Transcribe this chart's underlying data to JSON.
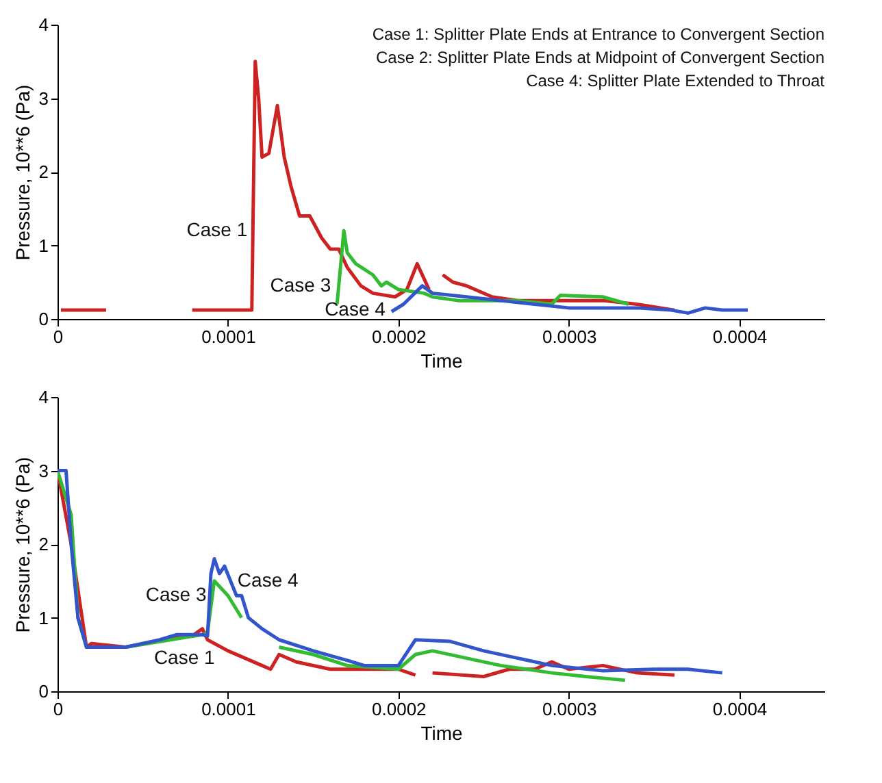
{
  "chart_data": [
    {
      "type": "line",
      "xlabel": "Time",
      "ylabel": "Pressure, 10**6 (Pa)",
      "xlim": [
        0,
        0.00045
      ],
      "ylim": [
        0,
        4
      ],
      "xticks": [
        0,
        0.0001,
        0.0002,
        0.0003,
        0.0004
      ],
      "yticks": [
        0,
        1,
        2,
        3,
        4
      ],
      "grid": false,
      "annotations": [
        "Case 1: Splitter Plate Ends at Entrance to Convergent Section",
        "Case 2: Splitter Plate Ends at Midpoint of Convergent Section",
        "Case 4: Splitter Plate Extended to Throat"
      ],
      "series": [
        {
          "name": "Case 1",
          "color": "#cc2222",
          "x": [
            2e-06,
            2.85e-05,
            5e-05,
            7.9e-05,
            0.000114,
            0.000116,
            0.000118,
            0.00012,
            0.000124,
            0.000129,
            0.000133,
            0.000137,
            0.000142,
            0.000148,
            0.000155,
            0.00016,
            0.000165,
            0.00017,
            0.000178,
            0.000185,
            0.000198,
            0.000205,
            0.000211,
            0.000215,
            0.000218,
            0.000222,
            0.000226,
            0.000232,
            0.00024,
            0.000245,
            0.000255,
            0.00027,
            0.0003,
            0.00032,
            0.00034,
            0.000362
          ],
          "values": [
            0.12,
            0.12,
            null,
            0.12,
            0.12,
            3.5,
            3.0,
            2.2,
            2.25,
            2.9,
            2.2,
            1.8,
            1.4,
            1.4,
            1.1,
            0.95,
            0.95,
            0.7,
            0.45,
            0.35,
            0.3,
            0.4,
            0.75,
            0.55,
            0.4,
            null,
            0.6,
            0.5,
            0.45,
            0.4,
            0.3,
            0.25,
            0.25,
            0.25,
            0.2,
            0.12
          ]
        },
        {
          "name": "Case 3",
          "color": "#33bb33",
          "x": [
            0.000164,
            0.000168,
            0.00017,
            0.000175,
            0.000185,
            0.00019,
            0.000193,
            0.0002,
            0.000215,
            0.00022,
            0.000235,
            0.00027,
            0.00029,
            0.000295,
            0.00032,
            0.000335
          ],
          "values": [
            0.2,
            1.2,
            0.9,
            0.75,
            0.6,
            0.45,
            0.5,
            0.4,
            0.35,
            0.3,
            0.25,
            0.25,
            0.2,
            0.32,
            0.3,
            0.2
          ]
        },
        {
          "name": "Case 4",
          "color": "#3355cc",
          "x": [
            0.000196,
            0.000203,
            0.000214,
            0.00022,
            0.00024,
            0.00026,
            0.00028,
            0.0003,
            0.00034,
            0.00036,
            0.00037,
            0.00038,
            0.00039,
            0.000405
          ],
          "values": [
            0.1,
            0.2,
            0.45,
            0.35,
            0.3,
            0.25,
            0.2,
            0.15,
            0.15,
            0.12,
            0.08,
            0.15,
            0.12,
            0.12
          ]
        }
      ]
    },
    {
      "type": "line",
      "xlabel": "Time",
      "ylabel": "Pressure, 10**6 (Pa)",
      "xlim": [
        0,
        0.00045
      ],
      "ylim": [
        0,
        4
      ],
      "xticks": [
        0,
        0.0001,
        0.0002,
        0.0003,
        0.0004
      ],
      "yticks": [
        0,
        1,
        2,
        3,
        4
      ],
      "grid": false,
      "series": [
        {
          "name": "Case 1",
          "color": "#cc2222",
          "x": [
            0,
            8e-06,
            1.7e-05,
            2e-05,
            4e-05,
            8e-05,
            8.5e-05,
            8.8e-05,
            0.0001,
            0.00012,
            0.000125,
            0.00013,
            0.00014,
            0.00016,
            0.0002,
            0.00021,
            0.000215,
            0.00022,
            0.00025,
            0.000265,
            0.00028,
            0.00029,
            0.0003,
            0.00032,
            0.00034,
            0.000362
          ],
          "values": [
            3.0,
            2.0,
            0.6,
            0.65,
            0.6,
            0.77,
            0.85,
            0.7,
            0.55,
            0.35,
            0.3,
            0.5,
            0.4,
            0.3,
            0.3,
            0.22,
            null,
            0.25,
            0.2,
            0.3,
            0.3,
            0.4,
            0.3,
            0.35,
            0.25,
            0.22
          ]
        },
        {
          "name": "Case 3",
          "color": "#33bb33",
          "x": [
            0,
            8e-06,
            1.2e-05,
            1.7e-05,
            4e-05,
            8.5e-05,
            8.8e-05,
            9.2e-05,
            0.0001,
            0.000108,
            0.00012,
            0.00013,
            0.00015,
            0.00017,
            0.0002,
            0.00021,
            0.00022,
            0.00024,
            0.00026,
            0.00029,
            0.00031,
            0.000333
          ],
          "values": [
            3.0,
            2.4,
            1.0,
            0.6,
            0.6,
            0.77,
            0.8,
            1.5,
            1.3,
            1.0,
            null,
            0.6,
            0.5,
            0.35,
            0.3,
            0.5,
            0.55,
            0.45,
            0.35,
            0.25,
            0.2,
            0.15
          ]
        },
        {
          "name": "Case 4",
          "color": "#3355cc",
          "x": [
            0,
            5e-06,
            8e-06,
            1.2e-05,
            1.7e-05,
            2e-05,
            4e-05,
            6e-05,
            7e-05,
            8.5e-05,
            8.8e-05,
            9e-05,
            9.2e-05,
            9.5e-05,
            9.8e-05,
            0.000105,
            0.000108,
            0.000112,
            0.00012,
            0.00013,
            0.00015,
            0.00017,
            0.00018,
            0.0002,
            0.00021,
            0.00023,
            0.00025,
            0.00027,
            0.00029,
            0.00032,
            0.00035,
            0.00037,
            0.00039
          ],
          "values": [
            3.0,
            3.0,
            2.0,
            1.0,
            0.6,
            0.6,
            0.6,
            0.7,
            0.77,
            0.77,
            0.75,
            1.6,
            1.8,
            1.6,
            1.7,
            1.3,
            1.3,
            1.0,
            0.85,
            0.7,
            0.55,
            0.42,
            0.35,
            0.35,
            0.7,
            0.68,
            0.55,
            0.45,
            0.35,
            0.28,
            0.3,
            0.3,
            0.25
          ]
        }
      ]
    }
  ]
}
